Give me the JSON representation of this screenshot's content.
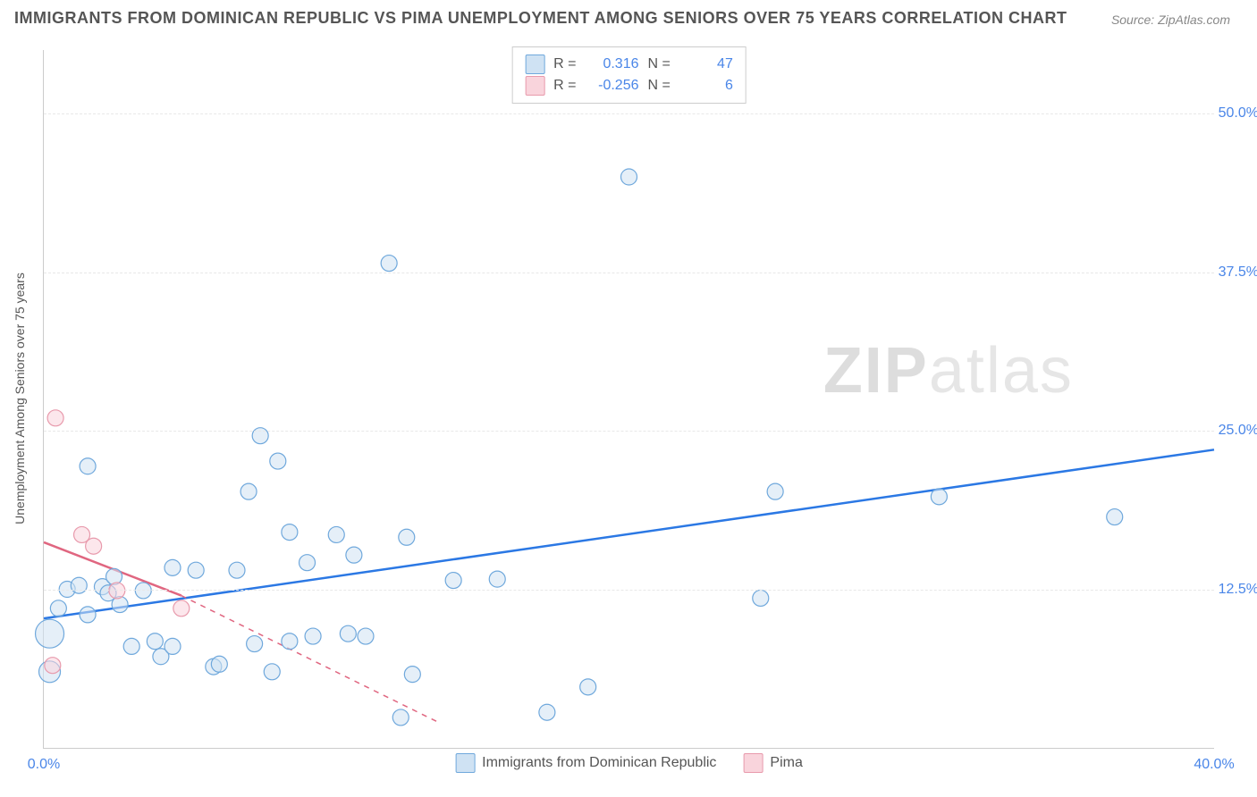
{
  "title": "IMMIGRANTS FROM DOMINICAN REPUBLIC VS PIMA UNEMPLOYMENT AMONG SENIORS OVER 75 YEARS CORRELATION CHART",
  "source": "Source: ZipAtlas.com",
  "watermark_prefix": "ZIP",
  "watermark_suffix": "atlas",
  "y_axis_label": "Unemployment Among Seniors over 75 years",
  "chart": {
    "type": "scatter",
    "background_color": "#ffffff",
    "grid_color": "#e8e8e8",
    "axis_color": "#cccccc",
    "tick_color": "#4a86e8",
    "xlim": [
      0,
      40
    ],
    "ylim": [
      0,
      55
    ],
    "x_ticks": [
      {
        "pos": 0.0,
        "label": "0.0%"
      },
      {
        "pos": 40.0,
        "label": "40.0%"
      }
    ],
    "y_ticks": [
      {
        "pos": 12.5,
        "label": "12.5%"
      },
      {
        "pos": 25.0,
        "label": "25.0%"
      },
      {
        "pos": 37.5,
        "label": "37.5%"
      },
      {
        "pos": 50.0,
        "label": "50.0%"
      }
    ],
    "series": [
      {
        "name": "Immigrants from Dominican Republic",
        "fill": "#cfe2f3",
        "stroke": "#6fa8dc",
        "line_color": "#2b78e4",
        "line_width": 2.5,
        "line_dash": "none",
        "marker_radius": 9,
        "fill_opacity": 0.55,
        "R_label": "R =",
        "R_value": "0.316",
        "N_label": "N =",
        "N_value": "47",
        "trend": {
          "x1": 0,
          "y1": 10.2,
          "x2": 40,
          "y2": 23.5
        },
        "points": [
          {
            "x": 0.2,
            "y": 9.0,
            "r": 16
          },
          {
            "x": 0.2,
            "y": 6.0,
            "r": 12
          },
          {
            "x": 0.5,
            "y": 11.0
          },
          {
            "x": 0.8,
            "y": 12.5
          },
          {
            "x": 1.2,
            "y": 12.8
          },
          {
            "x": 1.5,
            "y": 10.5
          },
          {
            "x": 1.5,
            "y": 22.2
          },
          {
            "x": 2.0,
            "y": 12.7
          },
          {
            "x": 2.2,
            "y": 12.2
          },
          {
            "x": 2.4,
            "y": 13.5
          },
          {
            "x": 2.6,
            "y": 11.3
          },
          {
            "x": 3.0,
            "y": 8.0
          },
          {
            "x": 3.4,
            "y": 12.4
          },
          {
            "x": 3.8,
            "y": 8.4
          },
          {
            "x": 4.0,
            "y": 7.2
          },
          {
            "x": 4.4,
            "y": 14.2
          },
          {
            "x": 4.4,
            "y": 8.0
          },
          {
            "x": 5.2,
            "y": 14.0
          },
          {
            "x": 5.8,
            "y": 6.4
          },
          {
            "x": 6.0,
            "y": 6.6
          },
          {
            "x": 6.6,
            "y": 14.0
          },
          {
            "x": 7.0,
            "y": 20.2
          },
          {
            "x": 7.2,
            "y": 8.2
          },
          {
            "x": 7.4,
            "y": 24.6
          },
          {
            "x": 7.8,
            "y": 6.0
          },
          {
            "x": 8.0,
            "y": 22.6
          },
          {
            "x": 8.4,
            "y": 8.4
          },
          {
            "x": 8.4,
            "y": 17.0
          },
          {
            "x": 9.0,
            "y": 14.6
          },
          {
            "x": 9.2,
            "y": 8.8
          },
          {
            "x": 10.0,
            "y": 16.8
          },
          {
            "x": 10.4,
            "y": 9.0
          },
          {
            "x": 10.6,
            "y": 15.2
          },
          {
            "x": 11.0,
            "y": 8.8
          },
          {
            "x": 11.8,
            "y": 38.2
          },
          {
            "x": 12.2,
            "y": 2.4
          },
          {
            "x": 12.4,
            "y": 16.6
          },
          {
            "x": 12.6,
            "y": 5.8
          },
          {
            "x": 14.0,
            "y": 13.2
          },
          {
            "x": 15.5,
            "y": 13.3
          },
          {
            "x": 17.2,
            "y": 2.8
          },
          {
            "x": 18.6,
            "y": 4.8
          },
          {
            "x": 20.0,
            "y": 45.0
          },
          {
            "x": 24.5,
            "y": 11.8
          },
          {
            "x": 25.0,
            "y": 20.2
          },
          {
            "x": 30.6,
            "y": 19.8
          },
          {
            "x": 36.6,
            "y": 18.2
          }
        ]
      },
      {
        "name": "Pima",
        "fill": "#f9d4dc",
        "stroke": "#e89aac",
        "line_color": "#e06680",
        "line_width": 2.5,
        "line_dash": "solid_then_dashed",
        "marker_radius": 9,
        "fill_opacity": 0.55,
        "R_label": "R =",
        "R_value": "-0.256",
        "N_label": "N =",
        "N_value": "6",
        "trend_solid": {
          "x1": 0,
          "y1": 16.2,
          "x2": 4.7,
          "y2": 12.0
        },
        "trend_dashed": {
          "x1": 4.7,
          "y1": 12.0,
          "x2": 13.5,
          "y2": 2.0
        },
        "points": [
          {
            "x": 0.3,
            "y": 6.5
          },
          {
            "x": 0.4,
            "y": 26.0
          },
          {
            "x": 1.3,
            "y": 16.8
          },
          {
            "x": 1.7,
            "y": 15.9
          },
          {
            "x": 2.5,
            "y": 12.4
          },
          {
            "x": 4.7,
            "y": 11.0
          }
        ]
      }
    ]
  }
}
